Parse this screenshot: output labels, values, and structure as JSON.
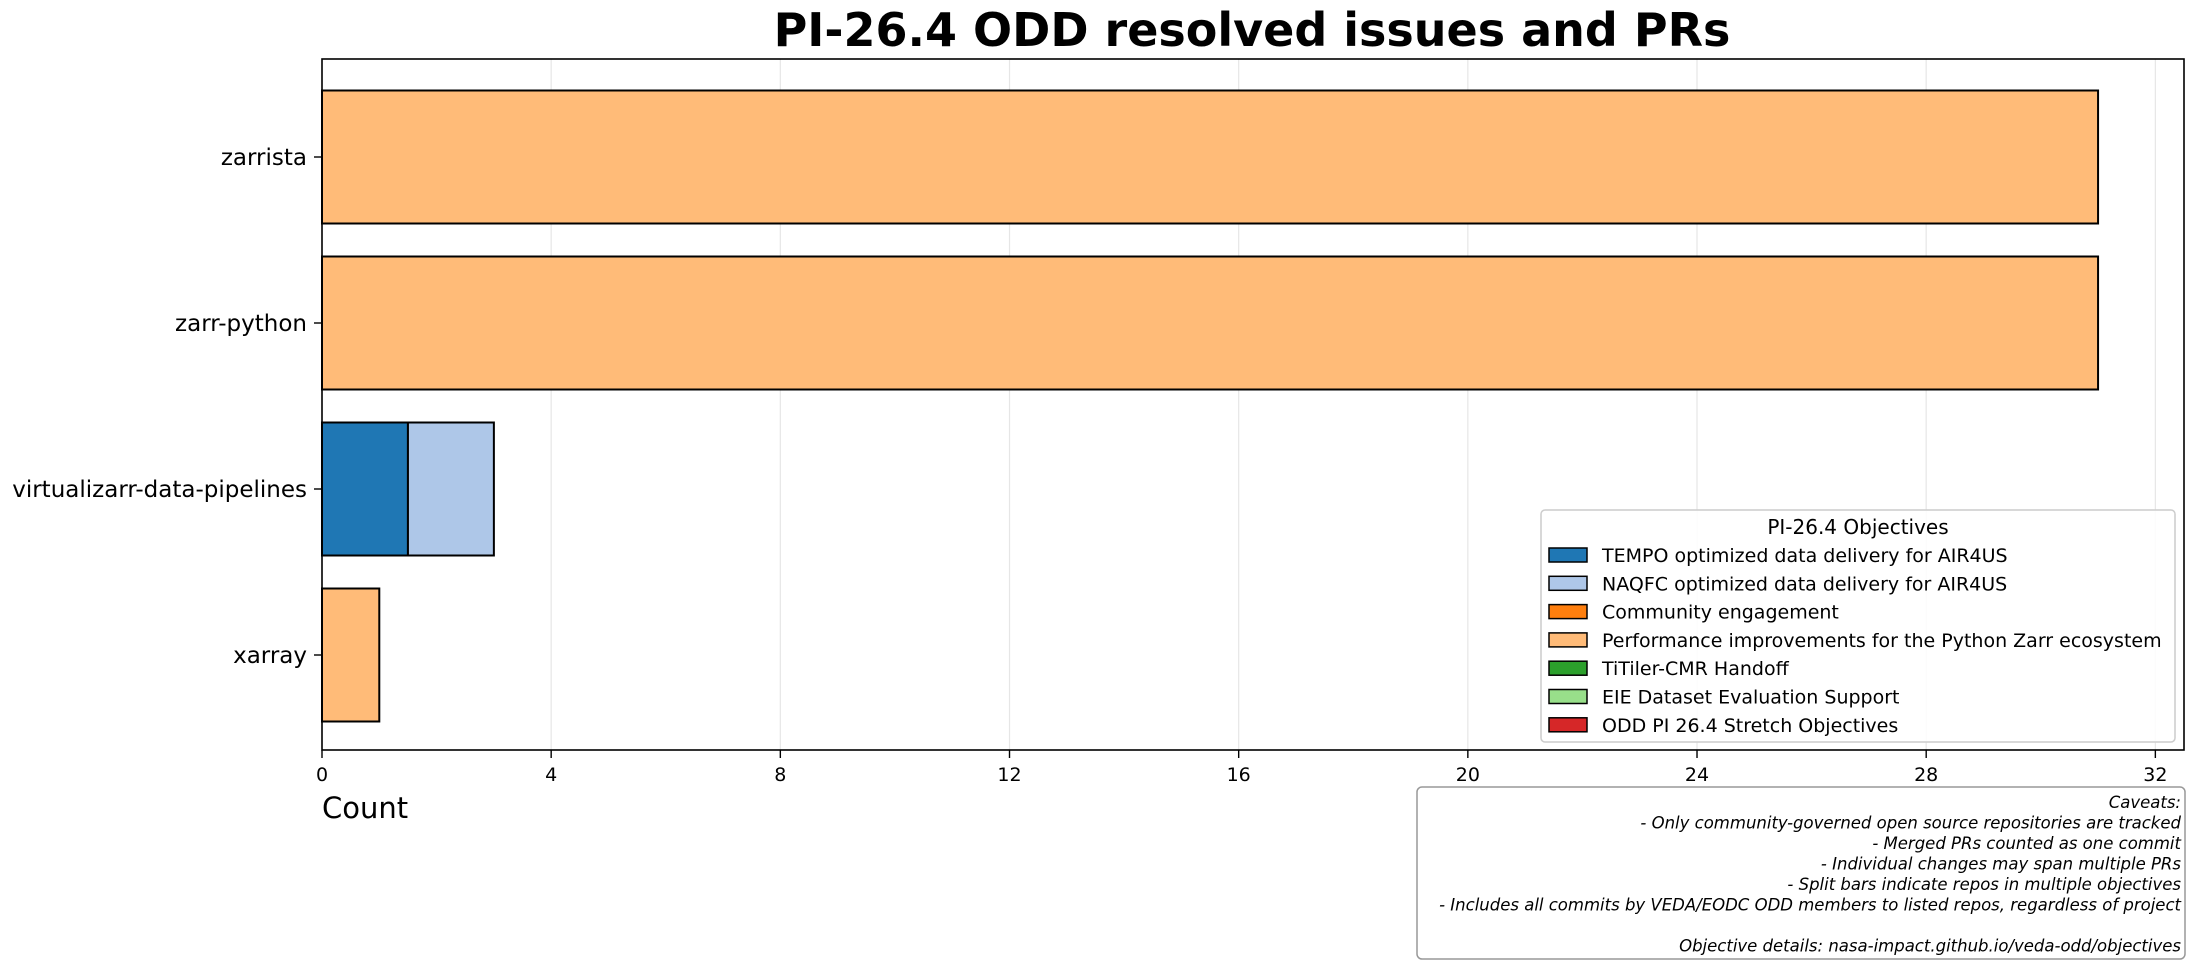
{
  "chart_data": {
    "type": "bar",
    "orientation": "horizontal",
    "stacked": true,
    "title": "PI-26.4 ODD resolved issues and PRs",
    "xlabel": "Count",
    "ylabel": "",
    "xlim": [
      0,
      32.5
    ],
    "xticks": [
      0,
      4,
      8,
      12,
      16,
      20,
      24,
      28,
      32
    ],
    "grid": "vertical",
    "categories": [
      "zarrista",
      "zarr-python",
      "virtualizarr-data-pipelines",
      "xarray"
    ],
    "series": [
      {
        "name": "TEMPO optimized data delivery for AIR4US",
        "color": "#1f77b4",
        "values": [
          0,
          0,
          1.5,
          0
        ]
      },
      {
        "name": "NAQFC optimized data delivery for AIR4US",
        "color": "#aec7e8",
        "values": [
          0,
          0,
          1.5,
          0
        ]
      },
      {
        "name": "Community engagement",
        "color": "#ff7f0e",
        "values": [
          0,
          0,
          0,
          0
        ]
      },
      {
        "name": "Performance improvements for the Python Zarr ecosystem",
        "color": "#ffbb78",
        "values": [
          31,
          31,
          0,
          1
        ]
      },
      {
        "name": "TiTiler-CMR Handoff",
        "color": "#2ca02c",
        "values": [
          0,
          0,
          0,
          0
        ]
      },
      {
        "name": "EIE Dataset Evaluation Support",
        "color": "#98df8a",
        "values": [
          0,
          0,
          0,
          0
        ]
      },
      {
        "name": "ODD PI 26.4 Stretch Objectives",
        "color": "#d62728",
        "values": [
          0,
          0,
          0,
          0
        ]
      }
    ],
    "legend": {
      "title": "PI-26.4 Objectives",
      "placement": "lower-right"
    }
  },
  "caveats": [
    "Caveats:",
    "- Only community-governed open source repositories are tracked",
    "- Merged PRs counted as one commit",
    "- Individual changes may span multiple PRs",
    "- Split bars indicate repos in multiple objectives",
    "- Includes all commits by VEDA/EODC ODD members to listed repos, regardless of project",
    "",
    "Objective details: nasa-impact.github.io/veda-odd/objectives"
  ]
}
